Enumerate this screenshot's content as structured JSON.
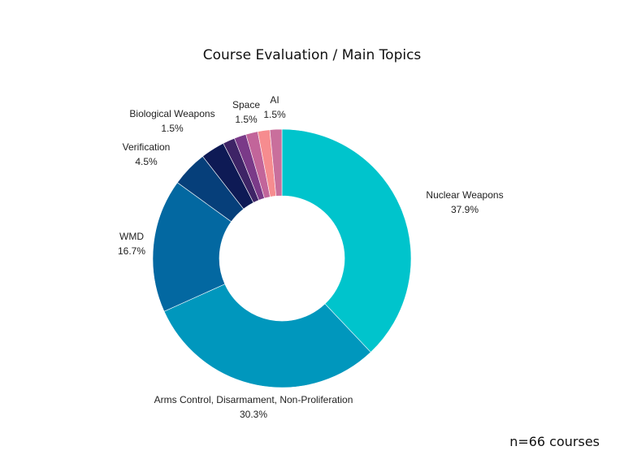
{
  "title": "Course Evaluation / Main Topics",
  "footnote": "n=66 courses",
  "chart_data": {
    "type": "pie",
    "title": "Course Evaluation / Main Topics",
    "donut": true,
    "legend": "none",
    "slices": [
      {
        "label": "Nuclear Weapons",
        "value": 37.9,
        "value_label": "37.9%",
        "color": "#00c4cc"
      },
      {
        "label": "Arms Control, Disarmament, Non-Proliferation",
        "value": 30.3,
        "value_label": "30.3%",
        "color": "#0097bd"
      },
      {
        "label": "WMD",
        "value": 16.7,
        "value_label": "16.7%",
        "color": "#0368a1"
      },
      {
        "label": "Verification",
        "value": 4.5,
        "value_label": "4.5%",
        "color": "#063f7a"
      },
      {
        "label": "",
        "value": 3.0,
        "value_label": "",
        "color": "#0e1a55"
      },
      {
        "label": "",
        "value": 1.5,
        "value_label": "",
        "color": "#3e2466"
      },
      {
        "label": "Biological Weapons",
        "value": 1.5,
        "value_label": "1.5%",
        "color": "#7a3a88"
      },
      {
        "label": "",
        "value": 1.5,
        "value_label": "",
        "color": "#c2659a"
      },
      {
        "label": "Space",
        "value": 1.5,
        "value_label": "1.5%",
        "color": "#f68c8f"
      },
      {
        "label": "AI",
        "value": 1.5,
        "value_label": "1.5%",
        "color": "#c96f9c"
      }
    ]
  }
}
